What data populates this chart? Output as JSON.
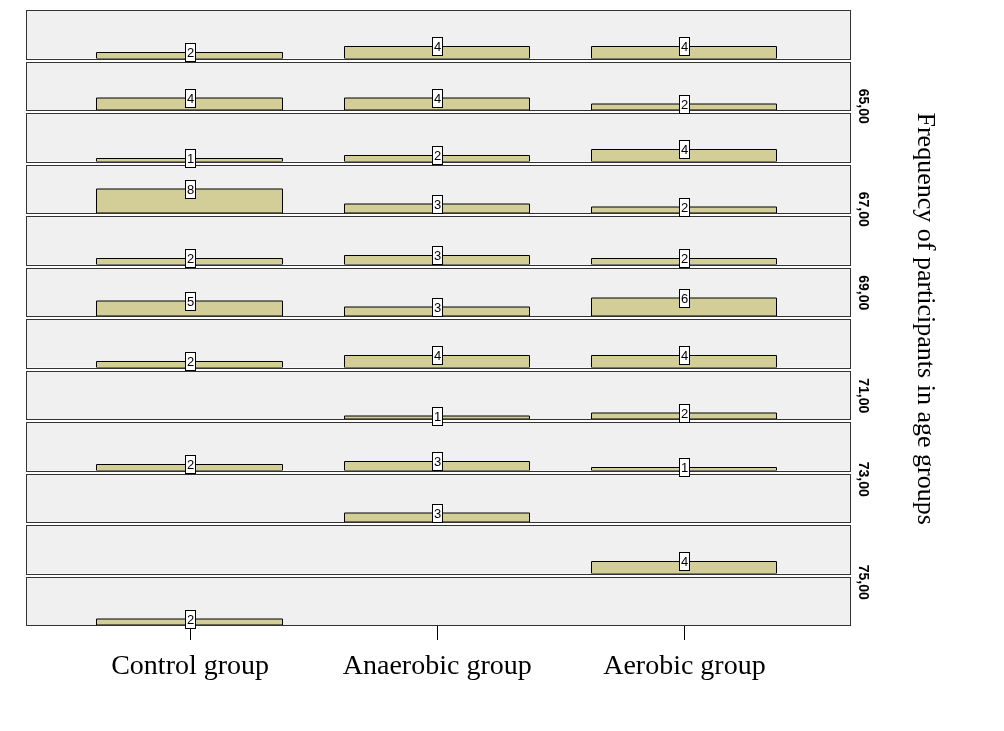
{
  "chart_data": [
    {
      "type": "bar",
      "categories": [
        null,
        null,
        null
      ],
      "values": [
        2,
        4,
        4
      ],
      "color": "#d3ce97",
      "ylim": [
        0,
        16
      ],
      "data_labels": true,
      "tick_labels": false,
      "annotations": [
        "Frequency of participants in age groups"
      ]
    },
    {
      "type": "bar",
      "categories": [
        null,
        null,
        null
      ],
      "values": [
        4,
        4,
        2
      ],
      "color": "#d3ce97",
      "ylim": [
        0,
        16
      ],
      "data_labels": true,
      "tick_labels": false,
      "y2label": "65,00"
    },
    {
      "type": "bar",
      "categories": [
        null,
        null,
        null
      ],
      "values": [
        1,
        2,
        4
      ],
      "color": "#d3ce97",
      "ylim": [
        0,
        16
      ],
      "data_labels": true,
      "tick_labels": false
    },
    {
      "type": "bar",
      "categories": [
        null,
        null,
        null
      ],
      "values": [
        8,
        3,
        2
      ],
      "color": "#d3ce97",
      "ylim": [
        0,
        16
      ],
      "data_labels": true,
      "tick_labels": false,
      "y2label": "67,00"
    },
    {
      "type": "bar",
      "categories": [
        null,
        null,
        null
      ],
      "values": [
        2,
        3,
        2
      ],
      "color": "#d3ce97",
      "ylim": [
        0,
        16
      ],
      "data_labels": true,
      "tick_labels": false
    },
    {
      "type": "bar",
      "categories": [
        null,
        null,
        null
      ],
      "values": [
        5,
        3,
        6
      ],
      "color": "#d3ce97",
      "ylim": [
        0,
        16
      ],
      "data_labels": true,
      "tick_labels": false,
      "y2label": "69,00"
    },
    {
      "type": "bar",
      "categories": [
        null,
        null,
        null
      ],
      "values": [
        2,
        4,
        4
      ],
      "color": "#d3ce97",
      "ylim": [
        0,
        16
      ],
      "data_labels": true,
      "tick_labels": false
    },
    {
      "type": "bar",
      "categories": [
        null,
        null,
        null
      ],
      "values": [
        null,
        1,
        2
      ],
      "color": "#d3ce97",
      "ylim": [
        0,
        16
      ],
      "data_labels": true,
      "tick_labels": false,
      "y2label": "71,00"
    },
    {
      "type": "bar",
      "categories": [
        null,
        null,
        null
      ],
      "values": [
        2,
        3,
        1
      ],
      "color": "#d3ce97",
      "ylim": [
        0,
        16
      ],
      "data_labels": true,
      "tick_labels": false
    },
    {
      "type": "bar",
      "categories": [
        null,
        null,
        null
      ],
      "values": [
        null,
        3,
        null
      ],
      "color": "#d3ce97",
      "ylim": [
        0,
        16
      ],
      "data_labels": true,
      "tick_labels": false,
      "y2label": "73,00"
    },
    {
      "type": "bar",
      "categories": [
        null,
        null,
        null
      ],
      "values": [
        null,
        null,
        4
      ],
      "color": "#d3ce97",
      "ylim": [
        0,
        16
      ],
      "data_labels": true,
      "tick_labels": false
    },
    {
      "type": "bar",
      "categories": [
        "Control group",
        "Anaerobic group",
        "Aerobic group"
      ],
      "values": [
        2,
        null,
        null
      ],
      "color": "#d3ce97",
      "ylim": [
        0,
        16
      ],
      "data_labels": true,
      "tick_labels": "x",
      "y2label": "75,00"
    }
  ]
}
